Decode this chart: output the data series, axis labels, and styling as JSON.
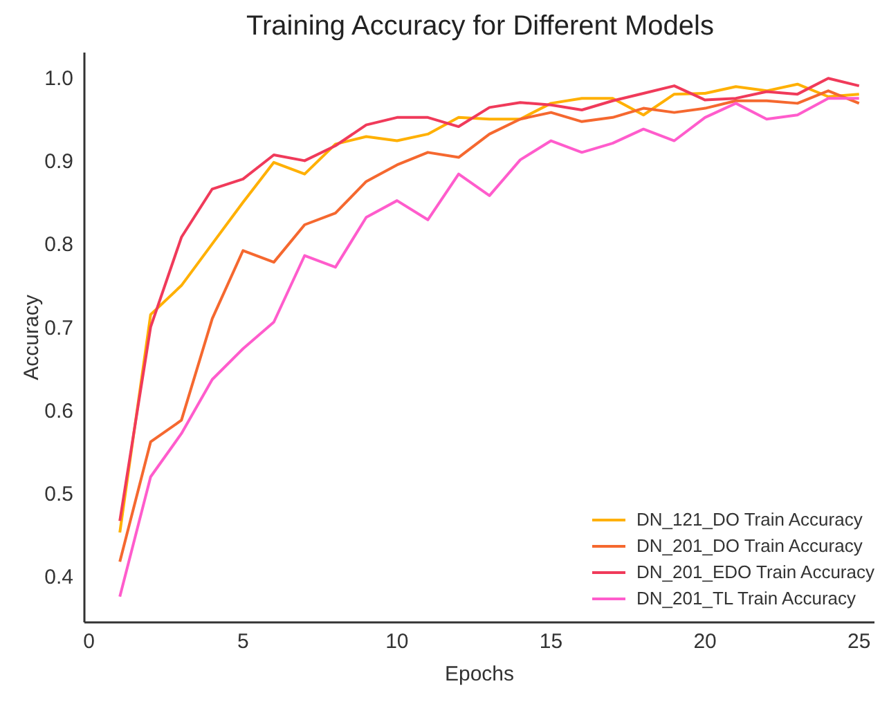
{
  "chart_data": {
    "type": "line",
    "title": "Training Accuracy for Different Models",
    "xlabel": "Epochs",
    "ylabel": "Accuracy",
    "x": [
      1,
      2,
      3,
      4,
      5,
      6,
      7,
      8,
      9,
      10,
      11,
      12,
      13,
      14,
      15,
      16,
      17,
      18,
      19,
      20,
      21,
      22,
      23,
      24,
      25
    ],
    "series": [
      {
        "name": "DN_121_DO Train Accuracy",
        "color": "#ffb000",
        "values": [
          0.453,
          0.715,
          0.75,
          0.8,
          0.85,
          0.898,
          0.884,
          0.92,
          0.929,
          0.924,
          0.932,
          0.952,
          0.95,
          0.95,
          0.969,
          0.975,
          0.975,
          0.955,
          0.98,
          0.981,
          0.989,
          0.984,
          0.992,
          0.977,
          0.98
        ]
      },
      {
        "name": "DN_201_DO Train Accuracy",
        "color": "#f5682f",
        "values": [
          0.418,
          0.562,
          0.588,
          0.71,
          0.792,
          0.778,
          0.823,
          0.837,
          0.875,
          0.895,
          0.91,
          0.904,
          0.932,
          0.95,
          0.958,
          0.947,
          0.952,
          0.963,
          0.958,
          0.963,
          0.972,
          0.972,
          0.969,
          0.984,
          0.969
        ]
      },
      {
        "name": "DN_201_EDO Train Accuracy",
        "color": "#f03a5a",
        "values": [
          0.467,
          0.7,
          0.808,
          0.866,
          0.878,
          0.907,
          0.9,
          0.918,
          0.943,
          0.952,
          0.952,
          0.941,
          0.964,
          0.97,
          0.967,
          0.961,
          0.972,
          0.981,
          0.99,
          0.973,
          0.975,
          0.983,
          0.98,
          0.999,
          0.99
        ]
      },
      {
        "name": "DN_201_TL Train Accuracy",
        "color": "#ff5ccc",
        "values": [
          0.376,
          0.52,
          0.572,
          0.637,
          0.674,
          0.706,
          0.786,
          0.772,
          0.832,
          0.852,
          0.829,
          0.884,
          0.858,
          0.901,
          0.924,
          0.91,
          0.921,
          0.938,
          0.924,
          0.952,
          0.969,
          0.95,
          0.955,
          0.975,
          0.975
        ]
      }
    ],
    "xlim": [
      -0.15,
      25.5
    ],
    "xticks": [
      0,
      5,
      10,
      15,
      20,
      25
    ],
    "ylim": [
      0.345,
      1.03
    ],
    "yticks": [
      {
        "value": 0.4,
        "label": "0.4"
      },
      {
        "value": 0.5,
        "label": "0.5"
      },
      {
        "value": 0.6,
        "label": "0.6"
      },
      {
        "value": 0.7,
        "label": "0.7"
      },
      {
        "value": 0.8,
        "label": "0.8"
      },
      {
        "value": 0.9,
        "label": "0.9"
      },
      {
        "value": 1,
        "label": "1.0"
      }
    ],
    "grid": false,
    "legend": "bottom right",
    "marker": "none",
    "line_style": "solid"
  }
}
